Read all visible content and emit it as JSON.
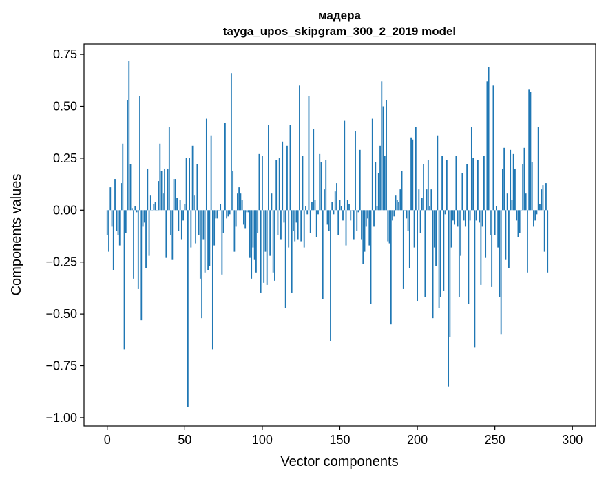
{
  "chart_data": {
    "type": "bar",
    "title": "мадера",
    "subtitle": "tayga_upos_skipgram_300_2_2019 model",
    "xlabel": "Vector components",
    "ylabel": "Components values",
    "xlim": [
      -15,
      315
    ],
    "ylim": [
      -1.04,
      0.8
    ],
    "x_ticks": [
      0,
      50,
      100,
      150,
      200,
      250,
      300
    ],
    "y_ticks": [
      0.75,
      0.5,
      0.25,
      0.0,
      -0.25,
      -0.5,
      -0.75,
      -1.0
    ],
    "y_tick_labels": [
      "0.75",
      "0.50",
      "0.25",
      "0.00",
      "−0.25",
      "−0.50",
      "−0.75",
      "−1.00"
    ],
    "grid": false,
    "bar_color": "#1f77b4",
    "series": [
      {
        "values": [
          -0.12,
          -0.2,
          0.11,
          -0.08,
          -0.29,
          0.15,
          -0.1,
          -0.12,
          -0.17,
          0.13,
          0.32,
          -0.67,
          -0.11,
          0.53,
          0.72,
          0.22,
          0.01,
          -0.33,
          0.02,
          -0.01,
          -0.38,
          0.55,
          -0.53,
          -0.08,
          -0.06,
          -0.28,
          0.2,
          -0.22,
          0.07,
          0.0,
          0.03,
          0.04,
          0.0,
          0.14,
          0.32,
          0.19,
          0.08,
          0.2,
          -0.23,
          0.2,
          0.4,
          -0.12,
          -0.24,
          0.15,
          0.15,
          0.06,
          -0.1,
          0.05,
          -0.14,
          -0.05,
          0.03,
          0.25,
          -0.95,
          0.25,
          -0.18,
          0.31,
          0.07,
          -0.16,
          0.22,
          -0.12,
          -0.33,
          -0.52,
          -0.14,
          -0.3,
          0.44,
          -0.29,
          -0.27,
          0.36,
          -0.67,
          -0.17,
          -0.04,
          -0.04,
          0.0,
          0.03,
          -0.31,
          -0.11,
          0.42,
          -0.04,
          -0.03,
          -0.02,
          0.66,
          0.19,
          -0.2,
          -0.08,
          0.08,
          0.11,
          0.08,
          0.05,
          -0.07,
          -0.09,
          -0.01,
          -0.01,
          -0.23,
          -0.33,
          -0.18,
          -0.24,
          -0.3,
          -0.11,
          0.27,
          -0.4,
          0.26,
          -0.35,
          -0.2,
          -0.36,
          0.41,
          -0.22,
          0.08,
          -0.3,
          -0.34,
          0.24,
          -0.12,
          0.25,
          -0.14,
          0.33,
          -0.06,
          -0.47,
          0.31,
          -0.18,
          0.41,
          -0.4,
          -0.1,
          -0.15,
          -0.06,
          -0.14,
          0.6,
          -0.15,
          0.26,
          -0.18,
          0.02,
          -0.02,
          0.55,
          -0.11,
          0.04,
          0.39,
          0.05,
          -0.13,
          -0.02,
          0.27,
          0.23,
          -0.43,
          0.1,
          0.24,
          -0.07,
          -0.1,
          -0.63,
          0.04,
          -0.02,
          0.09,
          0.13,
          -0.12,
          0.05,
          0.02,
          -0.05,
          0.43,
          -0.17,
          0.05,
          0.03,
          -0.05,
          0.0,
          -0.14,
          0.38,
          -0.1,
          -0.01,
          0.29,
          -0.14,
          -0.26,
          -0.2,
          -0.08,
          -0.04,
          -0.17,
          -0.45,
          0.44,
          -0.08,
          0.23,
          0.02,
          0.18,
          0.31,
          0.62,
          0.5,
          0.26,
          0.53,
          -0.15,
          -0.16,
          -0.55,
          -0.05,
          -0.03,
          0.07,
          0.05,
          0.04,
          0.1,
          0.19,
          -0.38,
          0.0,
          -0.04,
          -0.1,
          -0.28,
          0.35,
          0.34,
          -0.18,
          0.4,
          -0.44,
          0.1,
          -0.11,
          0.06,
          0.22,
          -0.42,
          0.1,
          0.24,
          0.02,
          0.1,
          -0.52,
          -0.18,
          -0.27,
          0.36,
          -0.47,
          -0.42,
          0.26,
          -0.39,
          -0.02,
          0.24,
          -0.85,
          -0.61,
          -0.18,
          -0.05,
          -0.07,
          0.26,
          -0.08,
          -0.42,
          -0.22,
          0.18,
          -0.05,
          -0.08,
          0.22,
          -0.45,
          -0.05,
          0.4,
          0.25,
          -0.66,
          -0.05,
          0.24,
          -0.06,
          -0.36,
          -0.08,
          0.26,
          -0.23,
          0.62,
          0.69,
          -0.12,
          -0.37,
          0.6,
          -0.12,
          0.02,
          -0.18,
          -0.42,
          -0.6,
          0.2,
          0.3,
          -0.24,
          0.08,
          -0.28,
          0.29,
          0.05,
          0.27,
          0.2,
          -0.05,
          -0.13,
          -0.11,
          0.0,
          0.22,
          0.3,
          0.08,
          -0.3,
          0.58,
          0.57,
          0.23,
          -0.08,
          -0.05,
          -0.02,
          0.4,
          0.03,
          0.1,
          0.12,
          -0.2,
          0.13,
          -0.3
        ]
      }
    ]
  }
}
